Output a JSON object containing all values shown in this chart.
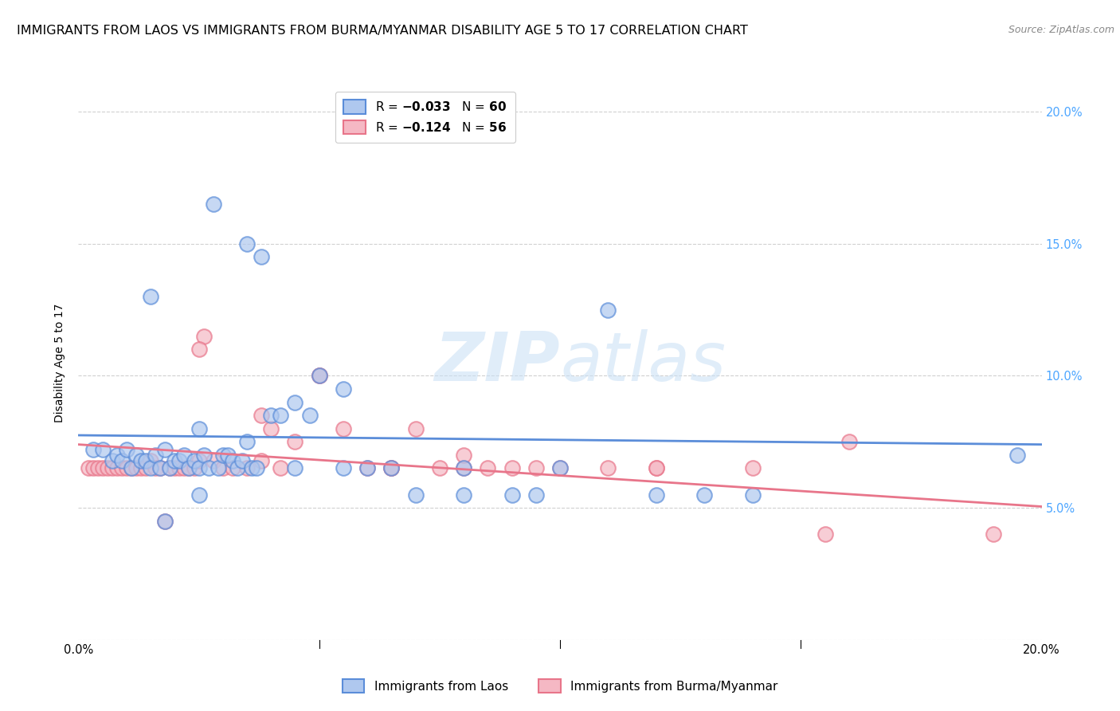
{
  "title": "IMMIGRANTS FROM LAOS VS IMMIGRANTS FROM BURMA/MYANMAR DISABILITY AGE 5 TO 17 CORRELATION CHART",
  "source": "Source: ZipAtlas.com",
  "ylabel": "Disability Age 5 to 17",
  "xlim": [
    0.0,
    0.2
  ],
  "ylim": [
    0.0,
    0.21
  ],
  "xticks": [
    0.0,
    0.05,
    0.1,
    0.15,
    0.2
  ],
  "yticks": [
    0.0,
    0.05,
    0.1,
    0.15,
    0.2
  ],
  "xticklabels": [
    "0.0%",
    "",
    "",
    "",
    "20.0%"
  ],
  "yticklabels_left": [
    "",
    "",
    "",
    "",
    ""
  ],
  "yticklabels_right": [
    "",
    "5.0%",
    "10.0%",
    "15.0%",
    "20.0%"
  ],
  "watermark_part1": "ZIP",
  "watermark_part2": "atlas",
  "blue_scatter_x": [
    0.003,
    0.005,
    0.007,
    0.008,
    0.009,
    0.01,
    0.011,
    0.012,
    0.013,
    0.014,
    0.015,
    0.016,
    0.017,
    0.018,
    0.019,
    0.02,
    0.021,
    0.022,
    0.023,
    0.024,
    0.025,
    0.026,
    0.027,
    0.028,
    0.029,
    0.03,
    0.031,
    0.032,
    0.033,
    0.034,
    0.035,
    0.036,
    0.037,
    0.038,
    0.04,
    0.042,
    0.045,
    0.048,
    0.05,
    0.055,
    0.06,
    0.065,
    0.07,
    0.08,
    0.09,
    0.1,
    0.11,
    0.12,
    0.13,
    0.14,
    0.015,
    0.025,
    0.035,
    0.045,
    0.055,
    0.08,
    0.095,
    0.195,
    0.025,
    0.018
  ],
  "blue_scatter_y": [
    0.072,
    0.072,
    0.068,
    0.07,
    0.068,
    0.072,
    0.065,
    0.07,
    0.068,
    0.068,
    0.065,
    0.07,
    0.065,
    0.072,
    0.065,
    0.068,
    0.068,
    0.07,
    0.065,
    0.068,
    0.065,
    0.07,
    0.065,
    0.165,
    0.065,
    0.07,
    0.07,
    0.068,
    0.065,
    0.068,
    0.15,
    0.065,
    0.065,
    0.145,
    0.085,
    0.085,
    0.09,
    0.085,
    0.1,
    0.095,
    0.065,
    0.065,
    0.055,
    0.065,
    0.055,
    0.065,
    0.125,
    0.055,
    0.055,
    0.055,
    0.13,
    0.08,
    0.075,
    0.065,
    0.065,
    0.055,
    0.055,
    0.07,
    0.055,
    0.045
  ],
  "pink_scatter_x": [
    0.002,
    0.003,
    0.004,
    0.005,
    0.006,
    0.007,
    0.008,
    0.009,
    0.01,
    0.011,
    0.012,
    0.013,
    0.014,
    0.015,
    0.016,
    0.017,
    0.018,
    0.019,
    0.02,
    0.021,
    0.022,
    0.023,
    0.024,
    0.025,
    0.026,
    0.028,
    0.03,
    0.032,
    0.035,
    0.038,
    0.04,
    0.042,
    0.045,
    0.05,
    0.055,
    0.06,
    0.065,
    0.07,
    0.075,
    0.08,
    0.085,
    0.09,
    0.095,
    0.1,
    0.11,
    0.12,
    0.14,
    0.155,
    0.16,
    0.19,
    0.025,
    0.038,
    0.05,
    0.065,
    0.08,
    0.12
  ],
  "pink_scatter_y": [
    0.065,
    0.065,
    0.065,
    0.065,
    0.065,
    0.065,
    0.065,
    0.065,
    0.065,
    0.065,
    0.065,
    0.065,
    0.065,
    0.068,
    0.065,
    0.065,
    0.045,
    0.065,
    0.065,
    0.065,
    0.065,
    0.065,
    0.065,
    0.068,
    0.115,
    0.068,
    0.065,
    0.065,
    0.065,
    0.068,
    0.08,
    0.065,
    0.075,
    0.1,
    0.08,
    0.065,
    0.065,
    0.08,
    0.065,
    0.065,
    0.065,
    0.065,
    0.065,
    0.065,
    0.065,
    0.065,
    0.065,
    0.04,
    0.075,
    0.04,
    0.11,
    0.085,
    0.1,
    0.065,
    0.07,
    0.065
  ],
  "blue_line_x": [
    0.0,
    0.2
  ],
  "blue_line_y": [
    0.0775,
    0.074
  ],
  "pink_line_x": [
    0.0,
    0.2
  ],
  "pink_line_y": [
    0.074,
    0.0505
  ],
  "blue_color": "#5b8dd9",
  "pink_color": "#e8758a",
  "blue_fill": "#afc8ef",
  "pink_fill": "#f5b8c4",
  "grid_color": "#d0d0d0",
  "right_tick_color": "#4da6ff",
  "title_fontsize": 11.5,
  "label_fontsize": 10,
  "tick_fontsize": 10.5
}
